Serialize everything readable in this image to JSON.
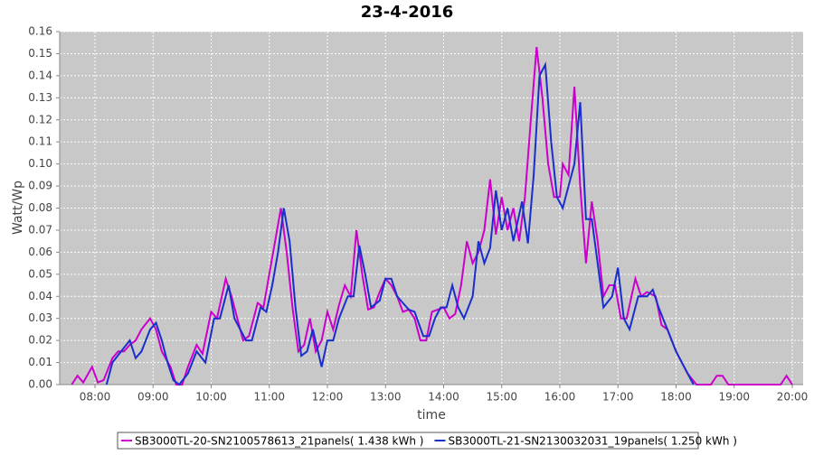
{
  "chart_data": {
    "type": "line",
    "title": "23-4-2016",
    "x_label": "time",
    "y_label": "Watt/Wp",
    "xlim": [
      7.393,
      20.187
    ],
    "ylim": [
      0,
      0.16
    ],
    "xticks": [
      {
        "value": 8,
        "label": "08:00"
      },
      {
        "value": 9,
        "label": "09:00"
      },
      {
        "value": 10,
        "label": "10:00"
      },
      {
        "value": 11,
        "label": "11:00"
      },
      {
        "value": 12,
        "label": "12:00"
      },
      {
        "value": 13,
        "label": "13:00"
      },
      {
        "value": 14,
        "label": "14:00"
      },
      {
        "value": 15,
        "label": "15:00"
      },
      {
        "value": 16,
        "label": "16:00"
      },
      {
        "value": 17,
        "label": "17:00"
      },
      {
        "value": 18,
        "label": "18:00"
      },
      {
        "value": 19,
        "label": "19:00"
      },
      {
        "value": 20,
        "label": "20:00"
      }
    ],
    "yticks": [
      {
        "value": 0,
        "label": "0.00"
      },
      {
        "value": 0.01,
        "label": "0.01"
      },
      {
        "value": 0.02,
        "label": "0.02"
      },
      {
        "value": 0.03,
        "label": "0.03"
      },
      {
        "value": 0.04,
        "label": "0.04"
      },
      {
        "value": 0.05,
        "label": "0.05"
      },
      {
        "value": 0.06,
        "label": "0.06"
      },
      {
        "value": 0.07,
        "label": "0.07"
      },
      {
        "value": 0.08,
        "label": "0.08"
      },
      {
        "value": 0.09,
        "label": "0.09"
      },
      {
        "value": 0.1,
        "label": "0.10"
      },
      {
        "value": 0.11,
        "label": "0.11"
      },
      {
        "value": 0.12,
        "label": "0.12"
      },
      {
        "value": 0.13,
        "label": "0.13"
      },
      {
        "value": 0.14,
        "label": "0.14"
      },
      {
        "value": 0.15,
        "label": "0.15"
      },
      {
        "value": 0.16,
        "label": "0.16"
      }
    ],
    "grid": true,
    "legend": "bottom",
    "series": [
      {
        "name": "SB3000TL-20-SN2100578613_21panels( 1.438 kWh )",
        "color": "#cc00cc",
        "x": [
          7.6,
          7.7,
          7.8,
          7.95,
          8.05,
          8.15,
          8.3,
          8.4,
          8.5,
          8.6,
          8.7,
          8.8,
          8.95,
          9.05,
          9.15,
          9.3,
          9.4,
          9.5,
          9.6,
          9.75,
          9.85,
          10.0,
          10.1,
          10.25,
          10.35,
          10.45,
          10.55,
          10.65,
          10.8,
          10.9,
          11.0,
          11.1,
          11.2,
          11.3,
          11.4,
          11.5,
          11.6,
          11.7,
          11.8,
          11.9,
          12.0,
          12.1,
          12.2,
          12.3,
          12.4,
          12.5,
          12.6,
          12.7,
          12.8,
          12.9,
          13.0,
          13.1,
          13.2,
          13.3,
          13.4,
          13.5,
          13.6,
          13.7,
          13.8,
          13.9,
          14.0,
          14.1,
          14.2,
          14.3,
          14.4,
          14.5,
          14.6,
          14.7,
          14.8,
          14.9,
          15.0,
          15.1,
          15.2,
          15.3,
          15.4,
          15.5,
          15.6,
          15.7,
          15.8,
          15.9,
          16.0,
          16.05,
          16.15,
          16.25,
          16.35,
          16.45,
          16.55,
          16.65,
          16.75,
          16.85,
          16.95,
          17.05,
          17.15,
          17.3,
          17.4,
          17.5,
          17.65,
          17.75,
          17.85,
          18.0,
          18.2,
          18.35,
          18.6,
          18.7,
          18.8,
          18.9,
          19.8,
          19.9,
          20.0
        ],
        "values": [
          0,
          0.004,
          0.001,
          0.008,
          0.001,
          0.002,
          0.012,
          0.015,
          0.015,
          0.018,
          0.02,
          0.025,
          0.03,
          0.025,
          0.015,
          0.008,
          0,
          0,
          0.008,
          0.018,
          0.014,
          0.033,
          0.03,
          0.048,
          0.04,
          0.03,
          0.02,
          0.022,
          0.037,
          0.035,
          0.05,
          0.065,
          0.08,
          0.06,
          0.035,
          0.015,
          0.018,
          0.03,
          0.015,
          0.02,
          0.033,
          0.025,
          0.036,
          0.045,
          0.04,
          0.07,
          0.05,
          0.034,
          0.035,
          0.042,
          0.048,
          0.045,
          0.04,
          0.033,
          0.034,
          0.03,
          0.02,
          0.02,
          0.033,
          0.034,
          0.035,
          0.03,
          0.032,
          0.045,
          0.065,
          0.055,
          0.06,
          0.07,
          0.093,
          0.068,
          0.085,
          0.07,
          0.08,
          0.065,
          0.085,
          0.12,
          0.153,
          0.13,
          0.1,
          0.085,
          0.085,
          0.1,
          0.095,
          0.135,
          0.09,
          0.055,
          0.083,
          0.065,
          0.04,
          0.045,
          0.045,
          0.03,
          0.03,
          0.048,
          0.04,
          0.042,
          0.04,
          0.027,
          0.025,
          0.015,
          0.005,
          0,
          0,
          0.004,
          0.004,
          0,
          0,
          0.004,
          0
        ]
      },
      {
        "name": "SB3000TL-21-SN2130032031_19panels( 1.250 kWh )",
        "color": "#1a2ecc",
        "x": [
          8.2,
          8.3,
          8.45,
          8.6,
          8.7,
          8.8,
          8.95,
          9.05,
          9.15,
          9.25,
          9.35,
          9.45,
          9.6,
          9.75,
          9.9,
          10.05,
          10.15,
          10.3,
          10.4,
          10.5,
          10.6,
          10.7,
          10.85,
          10.95,
          11.05,
          11.15,
          11.25,
          11.35,
          11.45,
          11.55,
          11.65,
          11.75,
          11.9,
          12.0,
          12.1,
          12.2,
          12.35,
          12.45,
          12.55,
          12.65,
          12.75,
          12.9,
          13.0,
          13.1,
          13.2,
          13.3,
          13.4,
          13.5,
          13.65,
          13.75,
          13.85,
          13.95,
          14.05,
          14.15,
          14.25,
          14.35,
          14.5,
          14.6,
          14.7,
          14.8,
          14.9,
          15.0,
          15.1,
          15.2,
          15.35,
          15.45,
          15.55,
          15.65,
          15.75,
          15.85,
          15.95,
          16.05,
          16.15,
          16.25,
          16.35,
          16.45,
          16.55,
          16.65,
          16.75,
          16.9,
          17.0,
          17.1,
          17.2,
          17.35,
          17.5,
          17.6,
          17.7,
          17.85,
          18.0,
          18.2,
          18.3
        ],
        "values": [
          0,
          0.01,
          0.015,
          0.02,
          0.012,
          0.015,
          0.025,
          0.028,
          0.02,
          0.01,
          0.002,
          0,
          0.005,
          0.015,
          0.01,
          0.03,
          0.03,
          0.045,
          0.03,
          0.025,
          0.02,
          0.02,
          0.035,
          0.033,
          0.045,
          0.06,
          0.08,
          0.065,
          0.035,
          0.013,
          0.015,
          0.025,
          0.008,
          0.02,
          0.02,
          0.03,
          0.04,
          0.04,
          0.063,
          0.05,
          0.035,
          0.038,
          0.048,
          0.048,
          0.04,
          0.037,
          0.034,
          0.033,
          0.022,
          0.022,
          0.03,
          0.035,
          0.035,
          0.045,
          0.035,
          0.03,
          0.04,
          0.065,
          0.055,
          0.062,
          0.088,
          0.07,
          0.08,
          0.065,
          0.083,
          0.064,
          0.095,
          0.14,
          0.145,
          0.11,
          0.085,
          0.08,
          0.09,
          0.1,
          0.128,
          0.075,
          0.075,
          0.055,
          0.035,
          0.04,
          0.053,
          0.03,
          0.025,
          0.04,
          0.04,
          0.043,
          0.035,
          0.025,
          0.015,
          0.005,
          0
        ]
      }
    ]
  }
}
